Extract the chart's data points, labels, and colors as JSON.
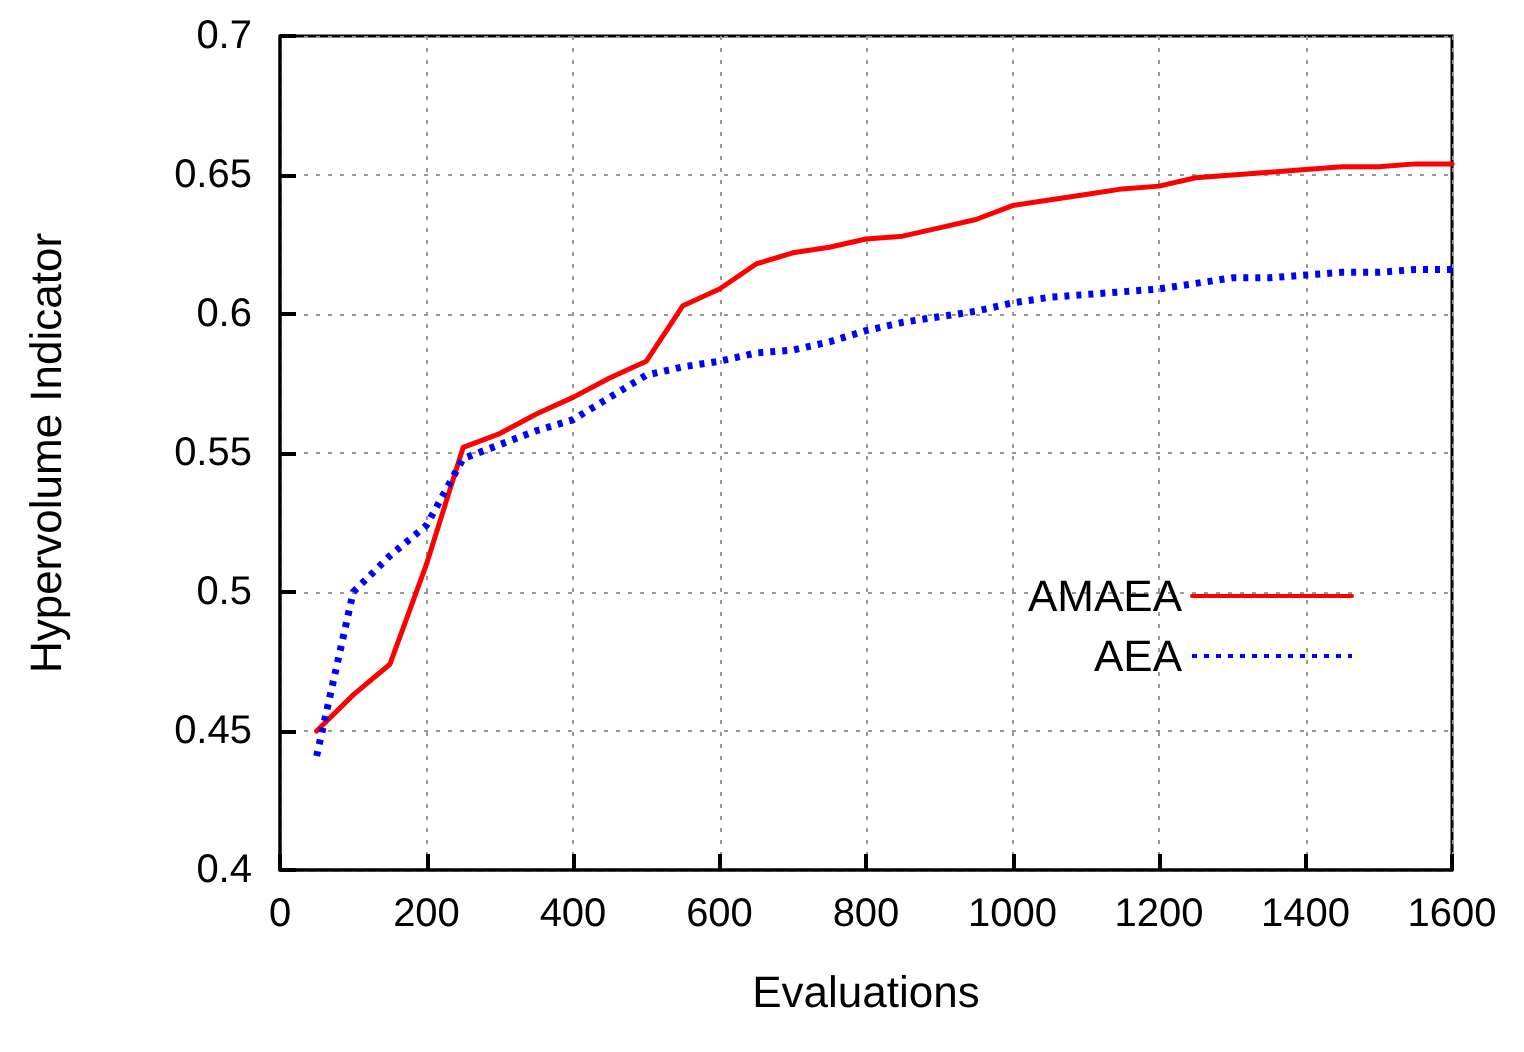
{
  "chart_data": {
    "type": "line",
    "xlabel": "Evaluations",
    "ylabel": "Hypervolume Indicator",
    "x": [
      50,
      100,
      150,
      200,
      250,
      300,
      350,
      400,
      450,
      500,
      550,
      600,
      650,
      700,
      750,
      800,
      850,
      900,
      950,
      1000,
      1050,
      1100,
      1150,
      1200,
      1250,
      1300,
      1350,
      1400,
      1450,
      1500,
      1550,
      1600
    ],
    "series": [
      {
        "name": "AMAEA",
        "color": "#ff0000",
        "line_style": "solid",
        "values": [
          0.45,
          0.463,
          0.474,
          0.51,
          0.552,
          0.557,
          0.564,
          0.57,
          0.577,
          0.583,
          0.603,
          0.609,
          0.618,
          0.622,
          0.624,
          0.627,
          0.628,
          0.631,
          0.634,
          0.639,
          0.641,
          0.643,
          0.645,
          0.646,
          0.649,
          0.65,
          0.651,
          0.652,
          0.653,
          0.653,
          0.654,
          0.654
        ]
      },
      {
        "name": "AEA",
        "color": "#0000ff",
        "line_style": "dotted",
        "values": [
          0.441,
          0.5,
          0.513,
          0.524,
          0.548,
          0.553,
          0.558,
          0.562,
          0.57,
          0.578,
          0.581,
          0.583,
          0.586,
          0.587,
          0.59,
          0.594,
          0.597,
          0.599,
          0.601,
          0.604,
          0.606,
          0.607,
          0.608,
          0.609,
          0.611,
          0.613,
          0.613,
          0.614,
          0.615,
          0.615,
          0.616,
          0.616
        ]
      }
    ],
    "xlim": [
      0,
      1600
    ],
    "xticks": [
      0,
      200,
      400,
      600,
      800,
      1000,
      1200,
      1400,
      1600
    ],
    "ylim": [
      0.4,
      0.7
    ],
    "yticks": [
      0.4,
      0.45,
      0.5,
      0.55,
      0.6,
      0.65,
      0.7
    ],
    "grid": true,
    "legend": "right",
    "marker": "none"
  }
}
